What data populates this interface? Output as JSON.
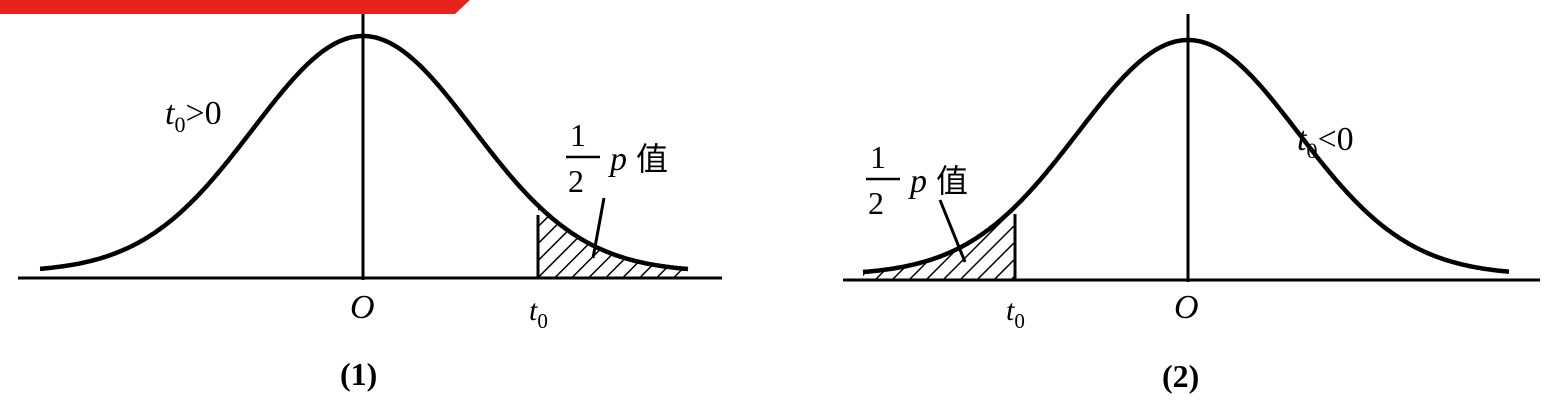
{
  "accent_color": "#e8231e",
  "figure1": {
    "condition_t": "t",
    "condition_sub": "0",
    "condition_rel": ">0",
    "half_num": "1",
    "half_den": "2",
    "half_p": "p",
    "half_word": "值",
    "origin_label": "O",
    "t0_t": "t",
    "t0_sub": "0",
    "caption": "(1)"
  },
  "figure2": {
    "condition_t": "t",
    "condition_sub": "0",
    "condition_rel": "<0",
    "half_num": "1",
    "half_den": "2",
    "half_p": "p",
    "half_word": "值",
    "origin_label": "O",
    "t0_t": "t",
    "t0_sub": "0",
    "caption": "(2)"
  }
}
